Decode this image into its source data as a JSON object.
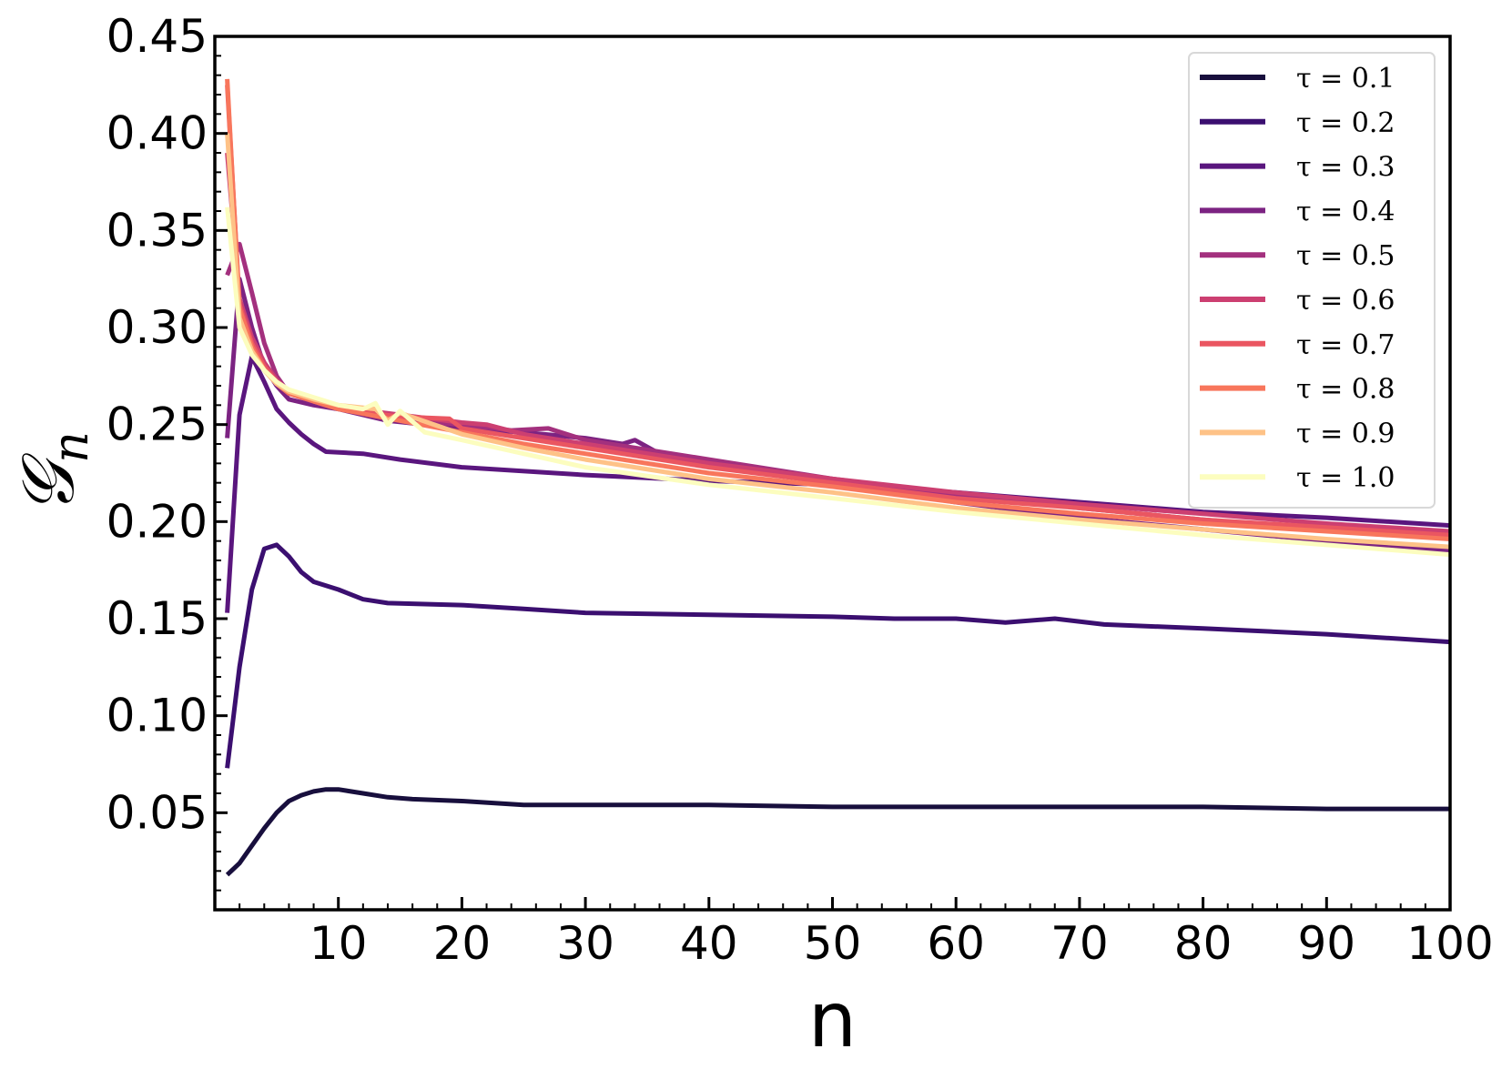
{
  "chart_data": {
    "type": "line",
    "title": "",
    "xlabel": "n",
    "ylabel": "𝒢",
    "ylabel_sub": "n",
    "xlim": [
      0,
      100
    ],
    "ylim": [
      0.0,
      0.45
    ],
    "x_ticks": [
      10,
      20,
      30,
      40,
      50,
      60,
      70,
      80,
      90,
      100
    ],
    "y_ticks": [
      0.05,
      0.1,
      0.15,
      0.2,
      0.25,
      0.3,
      0.35,
      0.4,
      0.45
    ],
    "x_tick_labels": [
      "10",
      "20",
      "30",
      "40",
      "50",
      "60",
      "70",
      "80",
      "90",
      "100"
    ],
    "y_tick_labels": [
      "0.05",
      "0.10",
      "0.15",
      "0.20",
      "0.25",
      "0.30",
      "0.35",
      "0.40",
      "0.45"
    ],
    "grid": false,
    "legend_position": "top-right",
    "series": [
      {
        "name": "τ = 0.1",
        "color": "#180f3d",
        "points": [
          [
            1,
            0.018
          ],
          [
            2,
            0.024
          ],
          [
            3,
            0.033
          ],
          [
            4,
            0.042
          ],
          [
            5,
            0.05
          ],
          [
            6,
            0.056
          ],
          [
            7,
            0.059
          ],
          [
            8,
            0.061
          ],
          [
            9,
            0.062
          ],
          [
            10,
            0.062
          ],
          [
            12,
            0.06
          ],
          [
            14,
            0.058
          ],
          [
            16,
            0.057
          ],
          [
            20,
            0.056
          ],
          [
            25,
            0.054
          ],
          [
            30,
            0.054
          ],
          [
            40,
            0.054
          ],
          [
            50,
            0.053
          ],
          [
            60,
            0.053
          ],
          [
            70,
            0.053
          ],
          [
            80,
            0.053
          ],
          [
            90,
            0.052
          ],
          [
            100,
            0.052
          ]
        ]
      },
      {
        "name": "τ = 0.2",
        "color": "#3b0f70",
        "points": [
          [
            1,
            0.073
          ],
          [
            2,
            0.125
          ],
          [
            3,
            0.165
          ],
          [
            4,
            0.186
          ],
          [
            5,
            0.188
          ],
          [
            6,
            0.182
          ],
          [
            7,
            0.174
          ],
          [
            8,
            0.169
          ],
          [
            10,
            0.165
          ],
          [
            12,
            0.16
          ],
          [
            14,
            0.158
          ],
          [
            20,
            0.157
          ],
          [
            25,
            0.155
          ],
          [
            30,
            0.153
          ],
          [
            40,
            0.152
          ],
          [
            50,
            0.151
          ],
          [
            55,
            0.15
          ],
          [
            60,
            0.15
          ],
          [
            64,
            0.148
          ],
          [
            68,
            0.15
          ],
          [
            72,
            0.147
          ],
          [
            80,
            0.145
          ],
          [
            90,
            0.142
          ],
          [
            100,
            0.138
          ]
        ]
      },
      {
        "name": "τ = 0.3",
        "color": "#5a167e",
        "points": [
          [
            1,
            0.153
          ],
          [
            2,
            0.255
          ],
          [
            3,
            0.285
          ],
          [
            4,
            0.272
          ],
          [
            5,
            0.258
          ],
          [
            6,
            0.251
          ],
          [
            7,
            0.245
          ],
          [
            8,
            0.24
          ],
          [
            9,
            0.236
          ],
          [
            12,
            0.235
          ],
          [
            15,
            0.232
          ],
          [
            20,
            0.228
          ],
          [
            30,
            0.224
          ],
          [
            40,
            0.221
          ],
          [
            50,
            0.219
          ],
          [
            60,
            0.215
          ],
          [
            70,
            0.21
          ],
          [
            80,
            0.205
          ],
          [
            90,
            0.202
          ],
          [
            100,
            0.198
          ]
        ]
      },
      {
        "name": "τ = 0.4",
        "color": "#7c2382",
        "points": [
          [
            1,
            0.243
          ],
          [
            2,
            0.325
          ],
          [
            3,
            0.3
          ],
          [
            4,
            0.28
          ],
          [
            5,
            0.27
          ],
          [
            6,
            0.263
          ],
          [
            8,
            0.26
          ],
          [
            10,
            0.258
          ],
          [
            14,
            0.252
          ],
          [
            20,
            0.248
          ],
          [
            25,
            0.246
          ],
          [
            30,
            0.243
          ],
          [
            33,
            0.24
          ],
          [
            34,
            0.242
          ],
          [
            36,
            0.235
          ],
          [
            40,
            0.23
          ],
          [
            50,
            0.22
          ],
          [
            60,
            0.21
          ],
          [
            70,
            0.202
          ],
          [
            80,
            0.196
          ],
          [
            90,
            0.19
          ],
          [
            100,
            0.185
          ]
        ]
      },
      {
        "name": "τ = 0.5",
        "color": "#a3307e",
        "points": [
          [
            1,
            0.327
          ],
          [
            2,
            0.343
          ],
          [
            3,
            0.318
          ],
          [
            4,
            0.292
          ],
          [
            5,
            0.275
          ],
          [
            6,
            0.266
          ],
          [
            8,
            0.262
          ],
          [
            10,
            0.259
          ],
          [
            14,
            0.253
          ],
          [
            20,
            0.25
          ],
          [
            24,
            0.247
          ],
          [
            27,
            0.248
          ],
          [
            30,
            0.242
          ],
          [
            40,
            0.232
          ],
          [
            50,
            0.222
          ],
          [
            60,
            0.214
          ],
          [
            70,
            0.207
          ],
          [
            80,
            0.201
          ],
          [
            90,
            0.196
          ],
          [
            100,
            0.192
          ]
        ]
      },
      {
        "name": "τ = 0.6",
        "color": "#cc3f71",
        "points": [
          [
            1,
            0.39
          ],
          [
            2,
            0.315
          ],
          [
            3,
            0.295
          ],
          [
            4,
            0.282
          ],
          [
            5,
            0.273
          ],
          [
            6,
            0.267
          ],
          [
            8,
            0.262
          ],
          [
            10,
            0.259
          ],
          [
            15,
            0.255
          ],
          [
            20,
            0.251
          ],
          [
            22,
            0.25
          ],
          [
            25,
            0.245
          ],
          [
            30,
            0.24
          ],
          [
            40,
            0.23
          ],
          [
            50,
            0.222
          ],
          [
            60,
            0.215
          ],
          [
            70,
            0.209
          ],
          [
            80,
            0.204
          ],
          [
            90,
            0.199
          ],
          [
            100,
            0.195
          ]
        ]
      },
      {
        "name": "τ = 0.7",
        "color": "#ea5661",
        "points": [
          [
            1,
            0.425
          ],
          [
            2,
            0.312
          ],
          [
            3,
            0.292
          ],
          [
            4,
            0.28
          ],
          [
            5,
            0.272
          ],
          [
            6,
            0.267
          ],
          [
            8,
            0.262
          ],
          [
            10,
            0.258
          ],
          [
            15,
            0.254
          ],
          [
            19,
            0.253
          ],
          [
            20,
            0.248
          ],
          [
            25,
            0.243
          ],
          [
            30,
            0.238
          ],
          [
            40,
            0.228
          ],
          [
            50,
            0.22
          ],
          [
            60,
            0.212
          ],
          [
            70,
            0.207
          ],
          [
            80,
            0.201
          ],
          [
            90,
            0.197
          ],
          [
            100,
            0.193
          ]
        ]
      },
      {
        "name": "τ = 0.8",
        "color": "#f8765c",
        "points": [
          [
            1,
            0.428
          ],
          [
            2,
            0.31
          ],
          [
            3,
            0.29
          ],
          [
            4,
            0.278
          ],
          [
            5,
            0.271
          ],
          [
            6,
            0.266
          ],
          [
            8,
            0.262
          ],
          [
            10,
            0.258
          ],
          [
            15,
            0.252
          ],
          [
            20,
            0.246
          ],
          [
            25,
            0.24
          ],
          [
            30,
            0.235
          ],
          [
            40,
            0.225
          ],
          [
            50,
            0.218
          ],
          [
            60,
            0.21
          ],
          [
            70,
            0.204
          ],
          [
            80,
            0.199
          ],
          [
            90,
            0.195
          ],
          [
            100,
            0.191
          ]
        ]
      },
      {
        "name": "τ = 0.9",
        "color": "#fec287",
        "points": [
          [
            1,
            0.4
          ],
          [
            2,
            0.305
          ],
          [
            3,
            0.288
          ],
          [
            4,
            0.278
          ],
          [
            5,
            0.271
          ],
          [
            6,
            0.267
          ],
          [
            8,
            0.263
          ],
          [
            10,
            0.26
          ],
          [
            13,
            0.258
          ],
          [
            14,
            0.252
          ],
          [
            15,
            0.256
          ],
          [
            20,
            0.245
          ],
          [
            25,
            0.238
          ],
          [
            30,
            0.232
          ],
          [
            40,
            0.222
          ],
          [
            50,
            0.215
          ],
          [
            60,
            0.207
          ],
          [
            70,
            0.201
          ],
          [
            80,
            0.196
          ],
          [
            90,
            0.191
          ],
          [
            100,
            0.187
          ]
        ]
      },
      {
        "name": "τ = 1.0",
        "color": "#fcfdbf",
        "points": [
          [
            1,
            0.362
          ],
          [
            2,
            0.3
          ],
          [
            3,
            0.286
          ],
          [
            4,
            0.278
          ],
          [
            5,
            0.272
          ],
          [
            6,
            0.268
          ],
          [
            8,
            0.264
          ],
          [
            10,
            0.26
          ],
          [
            12,
            0.258
          ],
          [
            13,
            0.261
          ],
          [
            14,
            0.25
          ],
          [
            15,
            0.257
          ],
          [
            17,
            0.246
          ],
          [
            20,
            0.242
          ],
          [
            25,
            0.235
          ],
          [
            30,
            0.228
          ],
          [
            40,
            0.219
          ],
          [
            50,
            0.212
          ],
          [
            60,
            0.205
          ],
          [
            70,
            0.199
          ],
          [
            80,
            0.193
          ],
          [
            90,
            0.188
          ],
          [
            100,
            0.183
          ]
        ]
      }
    ]
  }
}
